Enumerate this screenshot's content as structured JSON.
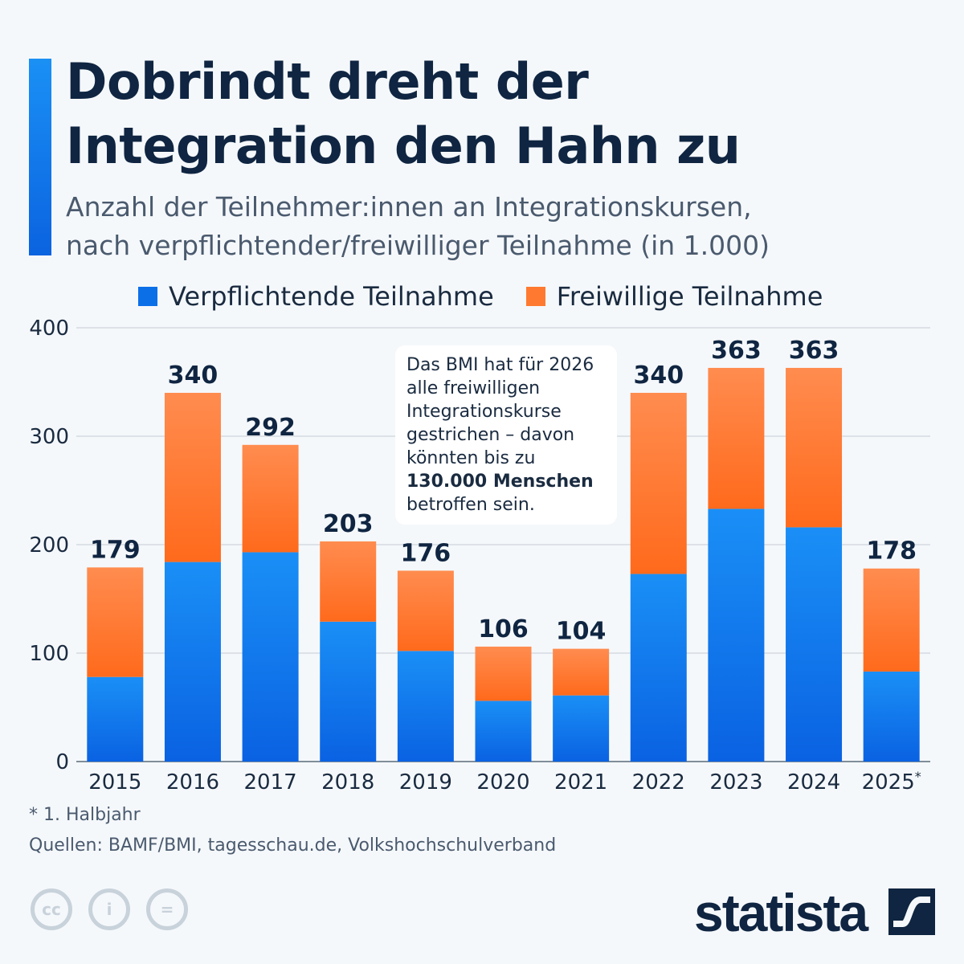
{
  "header": {
    "title_line1": "Dobrindt dreht der",
    "title_line2": "Integration den Hahn zu",
    "subtitle_line1": "Anzahl der Teilnehmer:innen an Integrationskursen,",
    "subtitle_line2": "nach verpflichtender/freiwilliger Teilnahme (in 1.000)"
  },
  "chart_data": {
    "type": "bar",
    "stacked": true,
    "categories": [
      "2015",
      "2016",
      "2017",
      "2018",
      "2019",
      "2020",
      "2021",
      "2022",
      "2023",
      "2024",
      "2025*"
    ],
    "series": [
      {
        "name": "Verpflichtende Teilnahme",
        "color": "#0b6fe8",
        "values": [
          78,
          184,
          193,
          129,
          102,
          56,
          61,
          173,
          233,
          216,
          83
        ]
      },
      {
        "name": "Freiwillige Teilnahme",
        "color": "#ff7a30",
        "values": [
          101,
          156,
          99,
          74,
          74,
          50,
          43,
          167,
          130,
          147,
          95
        ]
      }
    ],
    "totals": [
      179,
      340,
      292,
      203,
      176,
      106,
      104,
      340,
      363,
      363,
      178
    ],
    "yticks": [
      0,
      100,
      200,
      300,
      400
    ],
    "ylim": [
      0,
      400
    ],
    "grid": true,
    "legend_position": "top",
    "annotation": {
      "text": "Das BMI hat für 2026 alle freiwilligen Integrationskurse gestrichen – davon könnten bis zu",
      "bold": "130.000 Menschen",
      "tail": "betroffen sein."
    }
  },
  "footer": {
    "footnote": "* 1. Halbjahr",
    "sources": "Quellen: BAMF/BMI, tagesschau.de, Volkshochschulverband",
    "brand": "statista",
    "license_icons": [
      "cc-icon",
      "by-icon",
      "nd-icon"
    ]
  }
}
